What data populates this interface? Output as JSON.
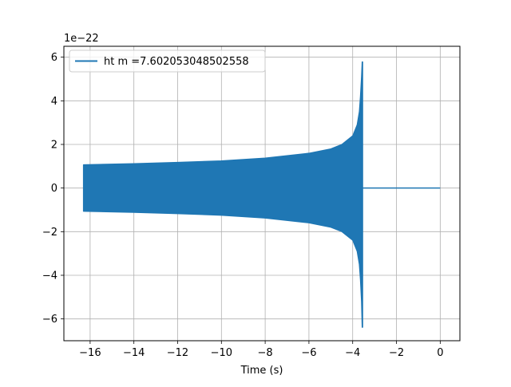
{
  "chart_data": {
    "type": "line",
    "title": "",
    "xlabel": "Time (s)",
    "ylabel": "",
    "y_offset_label": "1e−22",
    "xlim": [
      -17.2,
      0.9
    ],
    "ylim": [
      -7.0,
      6.5
    ],
    "x_ticks": [
      -16,
      -14,
      -12,
      -10,
      -8,
      -6,
      -4,
      -2,
      0
    ],
    "x_tick_labels": [
      "−16",
      "−14",
      "−12",
      "−10",
      "−8",
      "−6",
      "−4",
      "−2",
      "0"
    ],
    "y_ticks": [
      -6,
      -4,
      -2,
      0,
      2,
      4,
      6
    ],
    "y_tick_labels": [
      "−6",
      "−4",
      "−2",
      "0",
      "2",
      "4",
      "6"
    ],
    "grid": true,
    "legend_position": "top-left",
    "series": [
      {
        "name": "ht m =7.602053048502558",
        "color": "#1f77b4",
        "signal_start": -16.3,
        "signal_end": 0.0,
        "merger_time": -3.55,
        "upper_envelope": {
          "x": [
            -16.3,
            -14,
            -12,
            -10,
            -8,
            -6,
            -5,
            -4.5,
            -4.0,
            -3.8,
            -3.7,
            -3.65,
            -3.6,
            -3.57
          ],
          "y": [
            1.07,
            1.12,
            1.18,
            1.25,
            1.38,
            1.6,
            1.8,
            2.0,
            2.4,
            2.9,
            3.5,
            4.2,
            5.1,
            5.8
          ]
        },
        "lower_envelope": {
          "x": [
            -16.3,
            -14,
            -12,
            -10,
            -8,
            -6,
            -5,
            -4.5,
            -4.0,
            -3.8,
            -3.7,
            -3.65,
            -3.6,
            -3.57
          ],
          "y": [
            -1.07,
            -1.12,
            -1.18,
            -1.25,
            -1.38,
            -1.6,
            -1.8,
            -2.0,
            -2.4,
            -2.9,
            -3.5,
            -4.2,
            -5.2,
            -6.4
          ]
        },
        "post_merger_value": 0
      }
    ]
  }
}
